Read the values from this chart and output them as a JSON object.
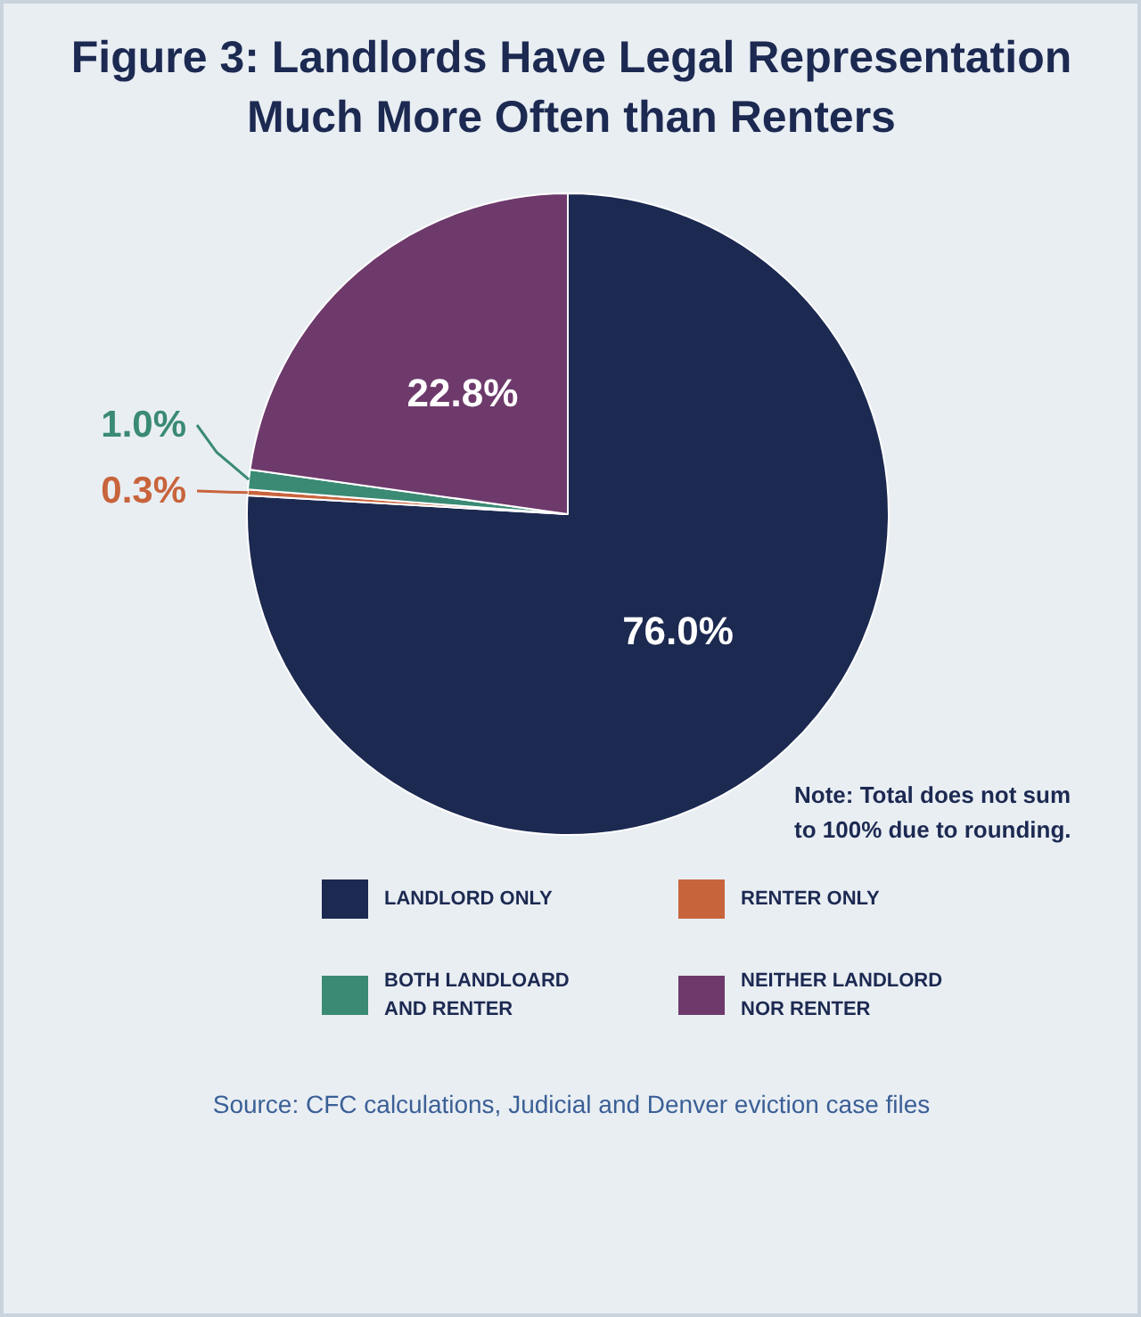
{
  "chart_data": {
    "type": "pie",
    "title": "Figure 3: Landlords Have Legal Representation\nMuch More Often than Renters",
    "categories": [
      "LANDLORD ONLY",
      "RENTER ONLY",
      "BOTH LANDLOARD AND RENTER",
      "NEITHER LANDLORD NOR RENTER"
    ],
    "values": [
      76.0,
      0.3,
      1.0,
      22.8
    ],
    "colors": [
      "#1c2951",
      "#c8643c",
      "#3a8a74",
      "#6d3a6b"
    ],
    "value_labels": [
      "76.0%",
      "0.3%",
      "1.0%",
      "22.8%"
    ],
    "legend": "bottom",
    "annotations": [
      "Note: Total does not sum\nto 100% due to rounding.",
      "Source: CFC calculations, Judicial and Denver eviction case files"
    ]
  }
}
